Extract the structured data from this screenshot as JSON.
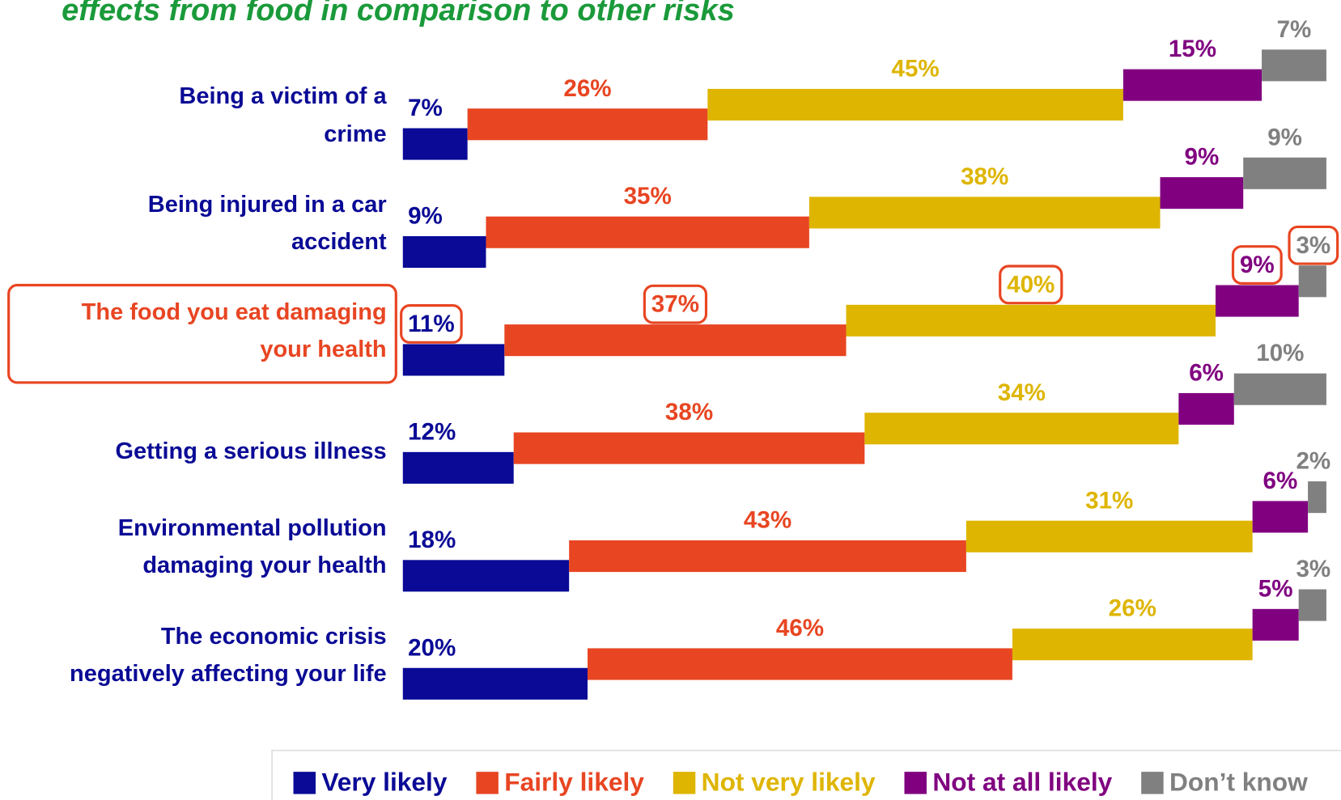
{
  "chart_data": {
    "type": "stacked_bar_staircase",
    "title": "effects from food in comparison to other risks",
    "categories": [
      "Being a victim of a\ncrime",
      "Being injured in a car\naccident",
      "The food you eat damaging\nyour health",
      "Getting a serious illness",
      "Environmental pollution\ndamaging your health",
      "The economic crisis\nnegatively affecting your life"
    ],
    "series": [
      {
        "name": "Very likely",
        "color": "#0a0a96",
        "values": [
          7,
          9,
          11,
          12,
          18,
          20
        ],
        "value_labels": [
          "7%",
          "9%",
          "11%",
          "12%",
          "18%",
          "20%"
        ]
      },
      {
        "name": "Fairly likely",
        "color": "#e84522",
        "values": [
          26,
          35,
          37,
          38,
          43,
          46
        ],
        "value_labels": [
          "26%",
          "35%",
          "37%",
          "38%",
          "43%",
          "46%"
        ]
      },
      {
        "name": "Not very likely",
        "color": "#deb500",
        "values": [
          45,
          38,
          40,
          34,
          31,
          26
        ],
        "value_labels": [
          "45%",
          "38%",
          "40%",
          "34%",
          "31%",
          "26%"
        ]
      },
      {
        "name": "Not at all likely",
        "color": "#800080",
        "values": [
          15,
          9,
          9,
          6,
          6,
          5
        ],
        "value_labels": [
          "15%",
          "9%",
          "9%",
          "6%",
          "6%",
          "5%"
        ]
      },
      {
        "name": "Don’t know",
        "color": "#808080",
        "values": [
          7,
          9,
          3,
          10,
          2,
          3
        ],
        "value_labels": [
          "7%",
          "9%",
          "3%",
          "10%",
          "2%",
          "3%"
        ]
      }
    ],
    "xlim": [
      0,
      100
    ],
    "highlight_index": 2,
    "legend": "bottom"
  }
}
